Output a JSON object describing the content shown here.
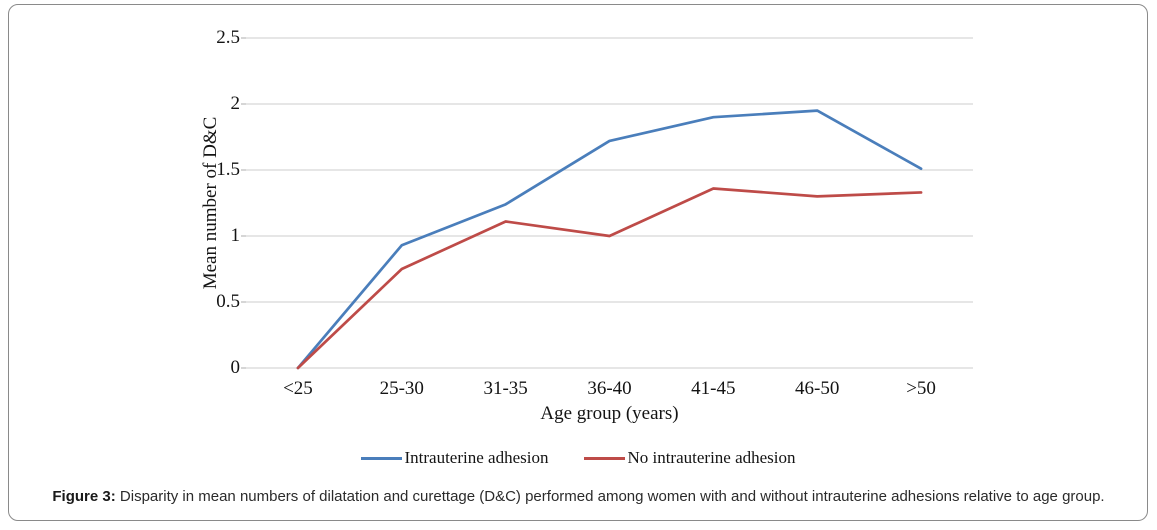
{
  "figure": {
    "caption_prefix": "Figure 3:",
    "caption_text": " Disparity in mean numbers of dilatation and curettage (D&C) performed among women with and without intrauterine adhesions relative to age group."
  },
  "chart_data": {
    "type": "line",
    "title": "",
    "xlabel": "Age group (years)",
    "ylabel": "Mean number of D&C",
    "categories": [
      "<25",
      "25-30",
      "31-35",
      "36-40",
      "41-45",
      "46-50",
      ">50"
    ],
    "series": [
      {
        "name": "Intrauterine adhesion",
        "color": "#4a7ebb",
        "values": [
          0,
          0.93,
          1.24,
          1.72,
          1.9,
          1.95,
          1.51
        ]
      },
      {
        "name": "No intrauterine adhesion",
        "color": "#be4b48",
        "values": [
          0,
          0.75,
          1.11,
          1.0,
          1.36,
          1.3,
          1.33
        ]
      }
    ],
    "ylim": [
      0,
      2.5
    ],
    "ytick_step": 0.5,
    "yticks": [
      "0",
      "0.5",
      "1",
      "1.5",
      "2",
      "2.5"
    ],
    "grid": true,
    "legend_position": "bottom"
  },
  "colors": {
    "grid": "#d7d7d7",
    "tick": "#bfbfbf",
    "border": "#8a8a8a"
  }
}
